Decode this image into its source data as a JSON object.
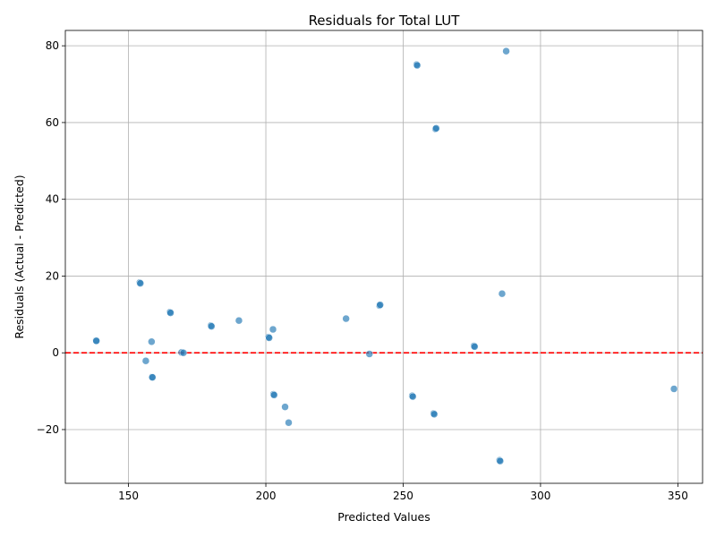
{
  "chart_data": {
    "type": "scatter",
    "title": "Residuals for Total LUT",
    "xlabel": "Predicted Values",
    "ylabel": "Residuals (Actual - Predicted)",
    "xlim": [
      127,
      359
    ],
    "ylim": [
      -34,
      84
    ],
    "xticks": [
      150,
      200,
      250,
      300,
      350
    ],
    "yticks": [
      -20,
      0,
      20,
      40,
      60,
      80
    ],
    "grid": true,
    "reference_line": {
      "y": 0,
      "color": "#ff0000",
      "style": "dashed"
    },
    "point_color": "#1f77b4",
    "points": [
      {
        "x": 138.2,
        "y": 3.2
      },
      {
        "x": 138.3,
        "y": 3.1
      },
      {
        "x": 154.1,
        "y": 18.3
      },
      {
        "x": 154.3,
        "y": 18.1
      },
      {
        "x": 156.3,
        "y": -2.1
      },
      {
        "x": 158.4,
        "y": 2.9
      },
      {
        "x": 158.6,
        "y": -6.3
      },
      {
        "x": 158.7,
        "y": -6.4
      },
      {
        "x": 165.1,
        "y": 10.6
      },
      {
        "x": 165.3,
        "y": 10.4
      },
      {
        "x": 169.3,
        "y": 0.1
      },
      {
        "x": 170.0,
        "y": 0.0
      },
      {
        "x": 180.0,
        "y": 7.1
      },
      {
        "x": 180.2,
        "y": 6.9
      },
      {
        "x": 190.2,
        "y": 8.4
      },
      {
        "x": 201.0,
        "y": 4.1
      },
      {
        "x": 201.2,
        "y": 3.9
      },
      {
        "x": 202.6,
        "y": 6.1
      },
      {
        "x": 202.8,
        "y": -10.8
      },
      {
        "x": 203.0,
        "y": -11.0
      },
      {
        "x": 207.0,
        "y": -14.1
      },
      {
        "x": 208.3,
        "y": -18.2
      },
      {
        "x": 229.2,
        "y": 8.9
      },
      {
        "x": 237.7,
        "y": -0.3
      },
      {
        "x": 241.4,
        "y": 12.3
      },
      {
        "x": 241.6,
        "y": 12.5
      },
      {
        "x": 253.3,
        "y": -11.2
      },
      {
        "x": 253.5,
        "y": -11.4
      },
      {
        "x": 254.9,
        "y": 75.1
      },
      {
        "x": 255.1,
        "y": 74.9
      },
      {
        "x": 261.1,
        "y": -15.8
      },
      {
        "x": 261.3,
        "y": -16.0
      },
      {
        "x": 261.8,
        "y": 58.3
      },
      {
        "x": 262.0,
        "y": 58.5
      },
      {
        "x": 275.8,
        "y": 1.8
      },
      {
        "x": 276.0,
        "y": 1.6
      },
      {
        "x": 285.1,
        "y": -28.0
      },
      {
        "x": 285.3,
        "y": -28.2
      },
      {
        "x": 286.0,
        "y": 15.4
      },
      {
        "x": 287.5,
        "y": 78.6
      },
      {
        "x": 348.6,
        "y": -9.4
      }
    ]
  }
}
